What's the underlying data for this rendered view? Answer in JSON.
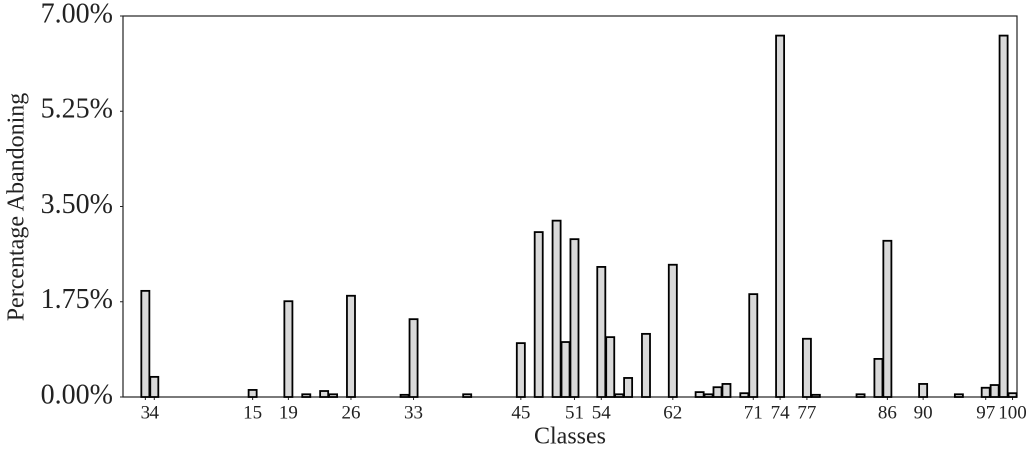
{
  "chart_data": {
    "type": "bar",
    "x_label": "Classes",
    "y_label": "Percentage Abandoning",
    "x": [
      3,
      4,
      15,
      19,
      21,
      23,
      24,
      26,
      32,
      33,
      39,
      45,
      47,
      49,
      50,
      51,
      54,
      55,
      56,
      57,
      59,
      62,
      65,
      66,
      67,
      68,
      70,
      71,
      74,
      77,
      78,
      83,
      85,
      86,
      90,
      94,
      97,
      98,
      99,
      100
    ],
    "values": [
      1.95,
      0.37,
      0.13,
      1.76,
      0.05,
      0.11,
      0.05,
      1.86,
      0.04,
      1.43,
      0.05,
      0.99,
      3.03,
      3.24,
      1.01,
      2.9,
      2.39,
      1.1,
      0.05,
      0.35,
      1.16,
      2.43,
      0.09,
      0.05,
      0.18,
      0.24,
      0.07,
      1.89,
      6.64,
      1.07,
      0.04,
      0.05,
      0.7,
      2.87,
      0.24,
      0.05,
      0.17,
      0.22,
      6.64,
      0.07
    ],
    "color": "#d9d9d9",
    "edgecolor": "#000000",
    "xlim": [
      0.5,
      100.5
    ],
    "xticks": [
      3,
      4,
      15,
      19,
      26,
      33,
      45,
      51,
      54,
      62,
      71,
      74,
      77,
      86,
      90,
      97,
      100
    ],
    "ylim": [
      0,
      7
    ],
    "yticks": [
      {
        "value": 0,
        "label": "0.00%"
      },
      {
        "value": 1.75,
        "label": "1.75%"
      },
      {
        "value": 3.5,
        "label": "3.50%"
      },
      {
        "value": 5.25,
        "label": "5.25%"
      },
      {
        "value": 7,
        "label": "7.00%"
      }
    ],
    "grid": false
  }
}
